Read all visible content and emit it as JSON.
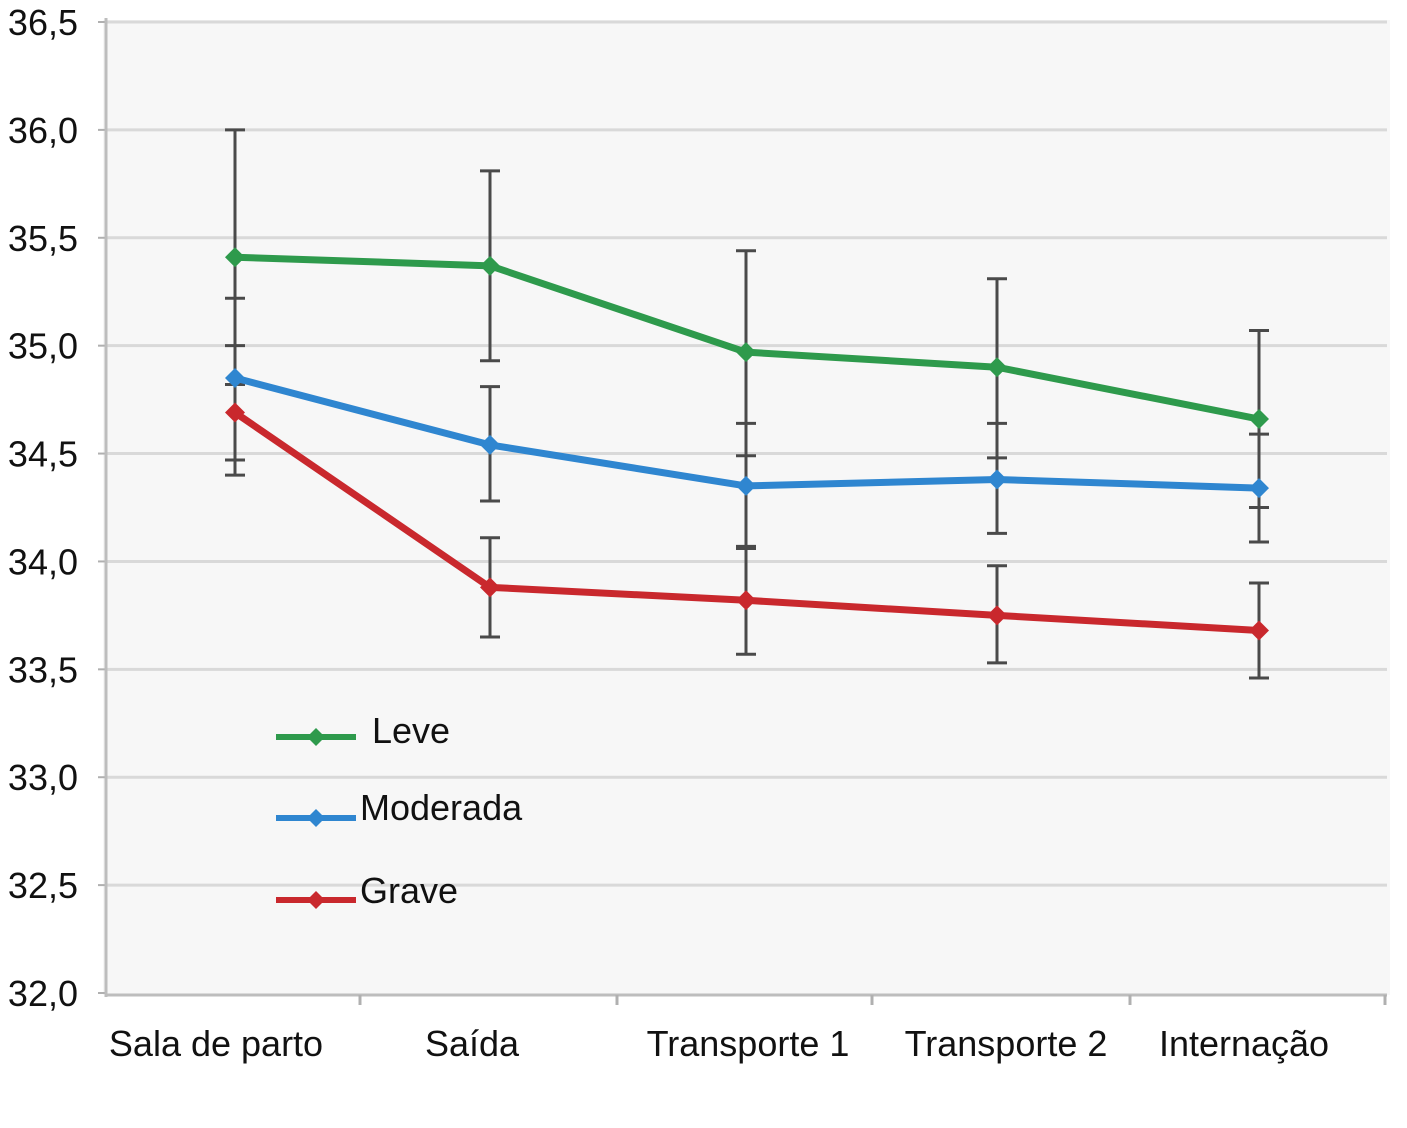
{
  "chart_data": {
    "type": "line",
    "categories": [
      "Sala de parto",
      "Saída",
      "Transporte 1",
      "Transporte 2",
      "Internação"
    ],
    "ylim": [
      32.0,
      36.5
    ],
    "yticks": [
      "32,0",
      "32,5",
      "33,0",
      "33,5",
      "34,0",
      "34,5",
      "35,0",
      "35,5",
      "36,0",
      "36,5"
    ],
    "grid": true,
    "legend_position": "bottom-left",
    "series": [
      {
        "name": "Leve",
        "color": "#2e9a4c",
        "values": [
          35.41,
          35.37,
          34.97,
          34.9,
          34.66
        ],
        "err_low": [
          34.82,
          34.93,
          34.49,
          34.48,
          34.25
        ],
        "err_high": [
          36.0,
          35.81,
          35.44,
          35.31,
          35.07
        ]
      },
      {
        "name": "Moderada",
        "color": "#2f86d0",
        "values": [
          34.85,
          34.54,
          34.35,
          34.38,
          34.34
        ],
        "err_low": [
          34.47,
          34.28,
          34.06,
          34.13,
          34.09
        ],
        "err_high": [
          35.22,
          34.81,
          34.64,
          34.64,
          34.59
        ]
      },
      {
        "name": "Grave",
        "color": "#c9282d",
        "values": [
          34.69,
          33.88,
          33.82,
          33.75,
          33.68
        ],
        "err_low": [
          34.4,
          33.65,
          33.57,
          33.53,
          33.46
        ],
        "err_high": [
          35.0,
          34.11,
          34.07,
          33.98,
          33.9
        ]
      }
    ]
  }
}
